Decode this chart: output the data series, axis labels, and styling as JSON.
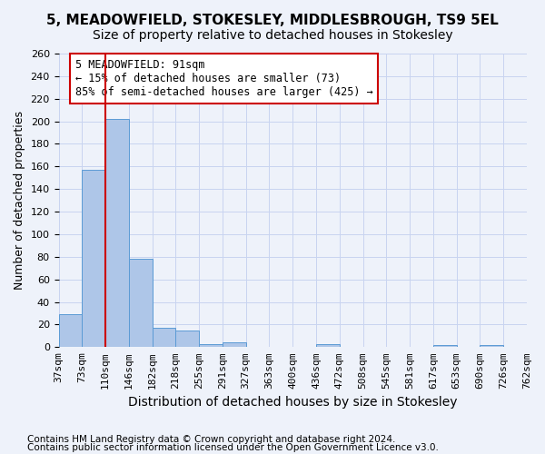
{
  "title": "5, MEADOWFIELD, STOKESLEY, MIDDLESBROUGH, TS9 5EL",
  "subtitle": "Size of property relative to detached houses in Stokesley",
  "xlabel": "Distribution of detached houses by size in Stokesley",
  "ylabel": "Number of detached properties",
  "bar_values": [
    29,
    157,
    202,
    78,
    17,
    15,
    3,
    4,
    0,
    0,
    0,
    3,
    0,
    0,
    0,
    0,
    2,
    0,
    2,
    0
  ],
  "bar_labels": [
    "37sqm",
    "73sqm",
    "110sqm",
    "146sqm",
    "182sqm",
    "218sqm",
    "255sqm",
    "291sqm",
    "327sqm",
    "363sqm",
    "400sqm",
    "436sqm",
    "472sqm",
    "508sqm",
    "545sqm",
    "581sqm",
    "617sqm",
    "653sqm",
    "690sqm",
    "726sqm",
    "762sqm"
  ],
  "bar_color": "#aec6e8",
  "bar_edge_color": "#5b9bd5",
  "redline_x": 1.5,
  "annotation_text": "5 MEADOWFIELD: 91sqm\n← 15% of detached houses are smaller (73)\n85% of semi-detached houses are larger (425) →",
  "annotation_box_color": "#ffffff",
  "annotation_box_edge_color": "#cc0000",
  "annotation_text_color": "#000000",
  "redline_color": "#cc0000",
  "ylim": [
    0,
    260
  ],
  "yticks": [
    0,
    20,
    40,
    60,
    80,
    100,
    120,
    140,
    160,
    180,
    200,
    220,
    240,
    260
  ],
  "background_color": "#eef2fa",
  "grid_color": "#c8d4f0",
  "footer_line1": "Contains HM Land Registry data © Crown copyright and database right 2024.",
  "footer_line2": "Contains public sector information licensed under the Open Government Licence v3.0.",
  "title_fontsize": 11,
  "subtitle_fontsize": 10,
  "xlabel_fontsize": 10,
  "ylabel_fontsize": 9,
  "tick_fontsize": 8,
  "annotation_fontsize": 8.5,
  "footer_fontsize": 7.5
}
